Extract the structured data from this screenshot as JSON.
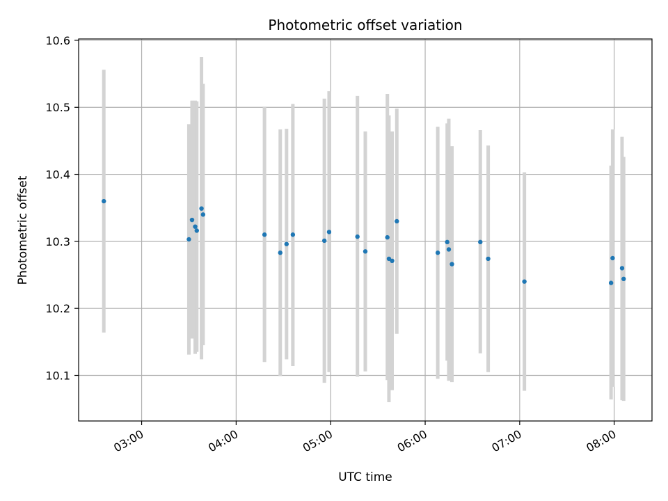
{
  "chart_data": {
    "type": "scatter",
    "title": "Photometric offset variation",
    "xlabel": "UTC time",
    "ylabel": "Photometric offset",
    "x_unit": "hours (UTC)",
    "xlim": [
      "02:20",
      "08:24"
    ],
    "ylim": [
      10.032,
      10.602
    ],
    "x_ticks": [
      "03:00",
      "04:00",
      "05:00",
      "06:00",
      "07:00",
      "08:00"
    ],
    "y_ticks": [
      "10.1",
      "10.2",
      "10.3",
      "10.4",
      "10.5",
      "10.6"
    ],
    "grid": true,
    "marker_color": "#1f77b4",
    "errorbar_color": "#d3d3d3",
    "points": [
      {
        "t": "02:36",
        "y": 10.36,
        "lo": 10.164,
        "hi": 10.556
      },
      {
        "t": "03:30",
        "y": 10.303,
        "lo": 10.131,
        "hi": 10.475
      },
      {
        "t": "03:32",
        "y": 10.332,
        "lo": 10.155,
        "hi": 10.51
      },
      {
        "t": "03:34",
        "y": 10.322,
        "lo": 10.132,
        "hi": 10.51
      },
      {
        "t": "03:35",
        "y": 10.316,
        "lo": 10.135,
        "hi": 10.509
      },
      {
        "t": "03:38",
        "y": 10.349,
        "lo": 10.124,
        "hi": 10.575
      },
      {
        "t": "03:39",
        "y": 10.34,
        "lo": 10.145,
        "hi": 10.535
      },
      {
        "t": "04:18",
        "y": 10.31,
        "lo": 10.12,
        "hi": 10.501
      },
      {
        "t": "04:28",
        "y": 10.283,
        "lo": 10.099,
        "hi": 10.467
      },
      {
        "t": "04:32",
        "y": 10.296,
        "lo": 10.124,
        "hi": 10.468
      },
      {
        "t": "04:36",
        "y": 10.31,
        "lo": 10.114,
        "hi": 10.505
      },
      {
        "t": "04:56",
        "y": 10.301,
        "lo": 10.089,
        "hi": 10.513
      },
      {
        "t": "04:59",
        "y": 10.314,
        "lo": 10.105,
        "hi": 10.524
      },
      {
        "t": "05:17",
        "y": 10.307,
        "lo": 10.098,
        "hi": 10.517
      },
      {
        "t": "05:22",
        "y": 10.285,
        "lo": 10.106,
        "hi": 10.464
      },
      {
        "t": "05:36",
        "y": 10.306,
        "lo": 10.093,
        "hi": 10.52
      },
      {
        "t": "05:37",
        "y": 10.274,
        "lo": 10.06,
        "hi": 10.488
      },
      {
        "t": "05:39",
        "y": 10.271,
        "lo": 10.078,
        "hi": 10.464
      },
      {
        "t": "05:42",
        "y": 10.33,
        "lo": 10.162,
        "hi": 10.498
      },
      {
        "t": "06:08",
        "y": 10.283,
        "lo": 10.095,
        "hi": 10.471
      },
      {
        "t": "06:14",
        "y": 10.299,
        "lo": 10.122,
        "hi": 10.476
      },
      {
        "t": "06:15",
        "y": 10.288,
        "lo": 10.092,
        "hi": 10.483
      },
      {
        "t": "06:17",
        "y": 10.266,
        "lo": 10.09,
        "hi": 10.442
      },
      {
        "t": "06:35",
        "y": 10.299,
        "lo": 10.133,
        "hi": 10.466
      },
      {
        "t": "06:40",
        "y": 10.274,
        "lo": 10.105,
        "hi": 10.443
      },
      {
        "t": "07:03",
        "y": 10.24,
        "lo": 10.077,
        "hi": 10.403
      },
      {
        "t": "07:58",
        "y": 10.238,
        "lo": 10.064,
        "hi": 10.413
      },
      {
        "t": "07:59",
        "y": 10.275,
        "lo": 10.083,
        "hi": 10.467
      },
      {
        "t": "08:05",
        "y": 10.26,
        "lo": 10.063,
        "hi": 10.456
      },
      {
        "t": "08:06",
        "y": 10.244,
        "lo": 10.062,
        "hi": 10.426
      }
    ]
  }
}
